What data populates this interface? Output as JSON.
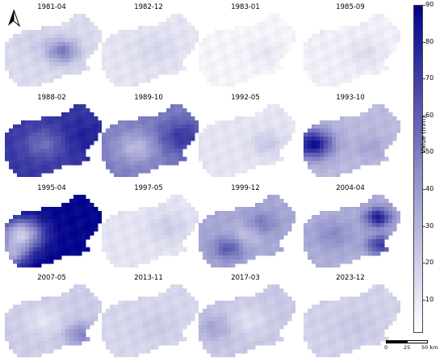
{
  "panels": [
    {
      "title": "1981-04",
      "base": 0.16,
      "hot": [
        [
          0.6,
          0.52,
          0.4,
          0.12
        ],
        [
          0.3,
          0.4,
          0.05,
          0.14
        ]
      ]
    },
    {
      "title": "1982-12",
      "base": 0.12,
      "hot": [
        [
          0.55,
          0.5,
          0.06,
          0.16
        ]
      ]
    },
    {
      "title": "1983-01",
      "base": 0.05,
      "hot": [
        [
          0.7,
          0.55,
          0.06,
          0.12
        ]
      ]
    },
    {
      "title": "1985-09",
      "base": 0.07,
      "hot": [
        [
          0.65,
          0.55,
          0.08,
          0.14
        ]
      ]
    },
    {
      "title": "1988-02",
      "base": 0.8,
      "hot": [
        [
          0.4,
          0.55,
          -0.2,
          0.15
        ],
        [
          0.82,
          0.45,
          0.08,
          0.18
        ]
      ]
    },
    {
      "title": "1989-10",
      "base": 0.55,
      "hot": [
        [
          0.35,
          0.6,
          -0.25,
          0.15
        ],
        [
          0.85,
          0.45,
          0.25,
          0.18
        ]
      ]
    },
    {
      "title": "1992-05",
      "base": 0.12,
      "hot": [
        [
          0.72,
          0.55,
          0.12,
          0.12
        ]
      ]
    },
    {
      "title": "1993-10",
      "base": 0.3,
      "hot": [
        [
          0.08,
          0.55,
          0.65,
          0.15
        ],
        [
          0.7,
          0.6,
          0.1,
          0.12
        ]
      ]
    },
    {
      "title": "1995-04",
      "base": 0.98,
      "hot": [
        [
          0.15,
          0.55,
          -0.75,
          0.16
        ],
        [
          0.05,
          0.85,
          -0.5,
          0.12
        ]
      ]
    },
    {
      "title": "1997-05",
      "base": 0.12,
      "hot": [
        [
          0.7,
          0.45,
          0.1,
          0.15
        ]
      ]
    },
    {
      "title": "1999-12",
      "base": 0.38,
      "hot": [
        [
          0.3,
          0.75,
          0.3,
          0.12
        ],
        [
          0.65,
          0.4,
          0.2,
          0.12
        ],
        [
          0.5,
          0.55,
          -0.15,
          0.12
        ]
      ]
    },
    {
      "title": "2004-04",
      "base": 0.35,
      "hot": [
        [
          0.78,
          0.3,
          0.55,
          0.1
        ],
        [
          0.8,
          0.7,
          0.45,
          0.1
        ],
        [
          0.3,
          0.55,
          0.15,
          0.15
        ]
      ]
    },
    {
      "title": "2007-05",
      "base": 0.22,
      "hot": [
        [
          0.8,
          0.7,
          0.3,
          0.12
        ],
        [
          0.4,
          0.5,
          -0.1,
          0.14
        ]
      ]
    },
    {
      "title": "2013-11",
      "base": 0.18,
      "hot": [
        [
          0.6,
          0.6,
          0.05,
          0.15
        ]
      ]
    },
    {
      "title": "2017-03",
      "base": 0.24,
      "hot": [
        [
          0.15,
          0.6,
          0.15,
          0.14
        ],
        [
          0.5,
          0.5,
          -0.1,
          0.15
        ]
      ]
    },
    {
      "title": "2023-12",
      "base": 0.2,
      "hot": [
        [
          0.55,
          0.6,
          0.04,
          0.16
        ]
      ]
    }
  ],
  "colorbar": {
    "label": "Value (mm)",
    "min": 1,
    "max": 90,
    "ticks": [
      "10",
      "20",
      "30",
      "40",
      "50",
      "60",
      "70",
      "80",
      "90"
    ],
    "color_low": "#ffffff",
    "color_high": "#00008b"
  },
  "scalebar": {
    "labels": [
      "0",
      "25",
      "50 km"
    ]
  },
  "north_icon": "north-arrow-icon"
}
